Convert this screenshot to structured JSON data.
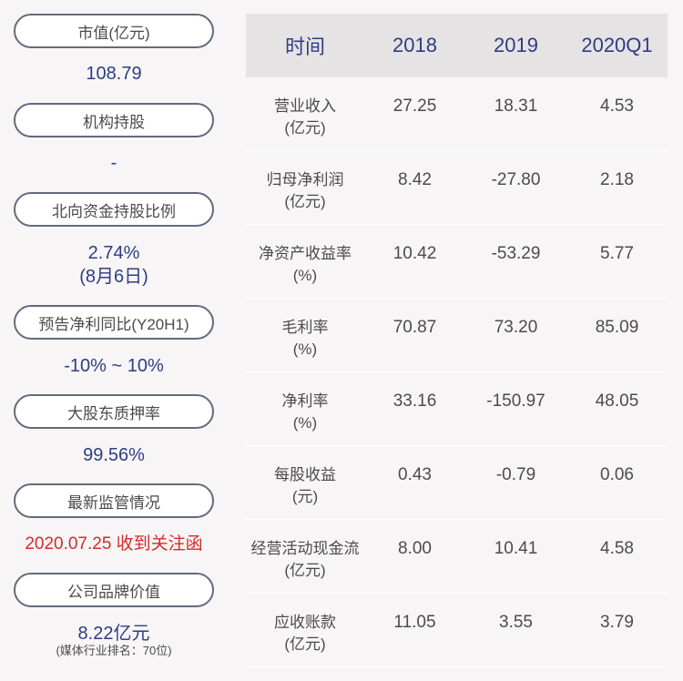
{
  "left": {
    "items": [
      {
        "label": "市值(亿元)",
        "value": "108.79"
      },
      {
        "label": "机构持股",
        "value": "-"
      },
      {
        "label": "北向资金持股比例",
        "value": "2.74%",
        "value2": "(8月6日)"
      },
      {
        "label": "预告净利同比(Y20H1)",
        "value": "-10% ~ 10%"
      },
      {
        "label": "大股东质押率",
        "value": "99.56%"
      },
      {
        "label": "最新监管情况",
        "value": "2020.07.25 收到关注函"
      },
      {
        "label": "公司品牌价值",
        "value": "8.22亿元",
        "note": "(媒体行业排名：70位)"
      }
    ]
  },
  "table": {
    "headers": [
      "时间",
      "2018",
      "2019",
      "2020Q1"
    ],
    "rows": [
      {
        "name": "营业收入",
        "unit": "(亿元)",
        "values": [
          "27.25",
          "18.31",
          "4.53"
        ]
      },
      {
        "name": "归母净利润",
        "unit": "(亿元)",
        "values": [
          "8.42",
          "-27.80",
          "2.18"
        ]
      },
      {
        "name": "净资产收益率",
        "unit": "(%)",
        "values": [
          "10.42",
          "-53.29",
          "5.77"
        ]
      },
      {
        "name": "毛利率",
        "unit": "(%)",
        "values": [
          "70.87",
          "73.20",
          "85.09"
        ]
      },
      {
        "name": "净利率",
        "unit": "(%)",
        "values": [
          "33.16",
          "-150.97",
          "48.05"
        ]
      },
      {
        "name": "每股收益",
        "unit": "(元)",
        "values": [
          "0.43",
          "-0.79",
          "0.06"
        ]
      },
      {
        "name": "经营活动现金流",
        "unit": "(亿元)",
        "values": [
          "8.00",
          "10.41",
          "4.58"
        ]
      },
      {
        "name": "应收账款",
        "unit": "(亿元)",
        "values": [
          "11.05",
          "3.55",
          "3.79"
        ]
      }
    ]
  },
  "colors": {
    "value_blue": "#2e3d84",
    "alert_red": "#d52b2b",
    "pill_border": "#626b7d"
  }
}
